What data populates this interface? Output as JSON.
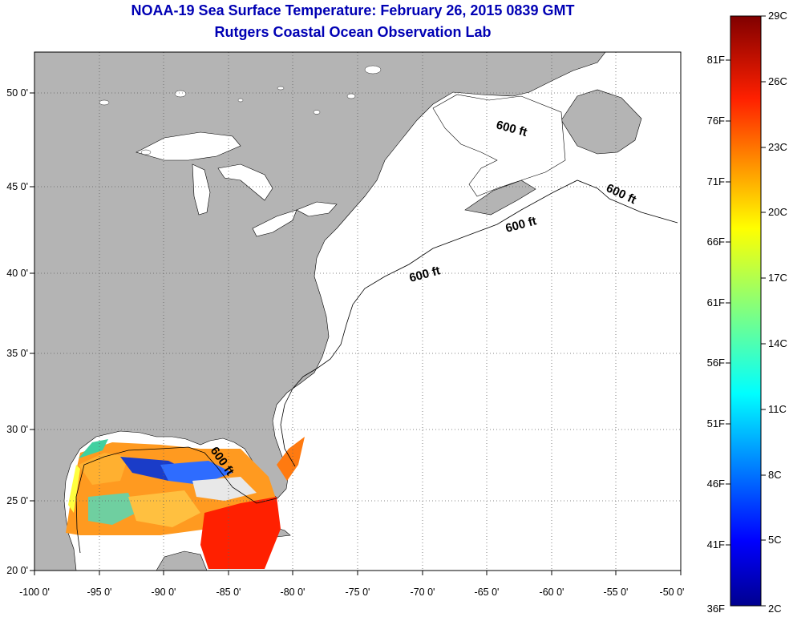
{
  "header": {
    "title": "NOAA-19 Sea Surface Temperature:  February 26, 2015 0839 GMT",
    "subtitle": "Rutgers Coastal Ocean Observation Lab"
  },
  "map": {
    "lon_range": [
      -100,
      -50
    ],
    "lat_range": [
      20,
      52
    ],
    "lon_ticks": [
      -100,
      -95,
      -90,
      -85,
      -80,
      -75,
      -70,
      -65,
      -60,
      -55,
      -50
    ],
    "lat_ticks": [
      20,
      25,
      30,
      35,
      40,
      45,
      50
    ],
    "lon_labels": [
      "-100 0'",
      "-95 0'",
      "-90 0'",
      "-85 0'",
      "-80 0'",
      "-75 0'",
      "-70 0'",
      "-65 0'",
      "-60 0'",
      "-55 0'",
      "-50 0'"
    ],
    "lat_labels": [
      "20 0'",
      "25 0'",
      "30 0'",
      "35 0'",
      "40 0'",
      "45 0'",
      "50 0'"
    ],
    "grid": "dotted",
    "land_color": "#b4b4b4",
    "ocean_color": "#ffffff",
    "contour_labels": [
      "600 ft",
      "600 ft",
      "600 ft",
      "600 ft",
      "600 ft"
    ]
  },
  "colorbar": {
    "range_c": [
      2,
      29
    ],
    "celsius_labels": [
      "29C",
      "26C",
      "23C",
      "20C",
      "17C",
      "14C",
      "11C",
      "8C",
      "5C",
      "2C"
    ],
    "fahrenheit_labels": [
      "81F",
      "76F",
      "71F",
      "66F",
      "61F",
      "56F",
      "51F",
      "46F",
      "41F",
      "36F"
    ],
    "colors": [
      "#00008f",
      "#0000ff",
      "#0080ff",
      "#00ffff",
      "#80ff80",
      "#ffff00",
      "#ff8000",
      "#ff0000",
      "#800000"
    ]
  }
}
